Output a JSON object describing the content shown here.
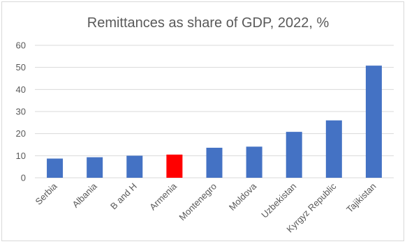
{
  "chart_data": {
    "type": "bar",
    "title": "Remittances as share of GDP, 2022, %",
    "xlabel": "",
    "ylabel": "",
    "categories": [
      "Serbia",
      "Albania",
      "B and H",
      "Armenia",
      "Montenegro",
      "Moldova",
      "Uzbekistan",
      "Kyrgyz Republic",
      "Tajikistan"
    ],
    "values": [
      8.7,
      9.3,
      10.0,
      10.5,
      13.6,
      14.1,
      20.8,
      26.0,
      50.8
    ],
    "ylim": [
      0,
      60
    ],
    "yticks": [
      "0",
      "10",
      "20",
      "30",
      "40",
      "50",
      "60"
    ],
    "grid": true,
    "legend": "none",
    "colors": {
      "default": "#4472C4",
      "highlight": "#FF0000",
      "highlight_category": "Armenia"
    }
  }
}
